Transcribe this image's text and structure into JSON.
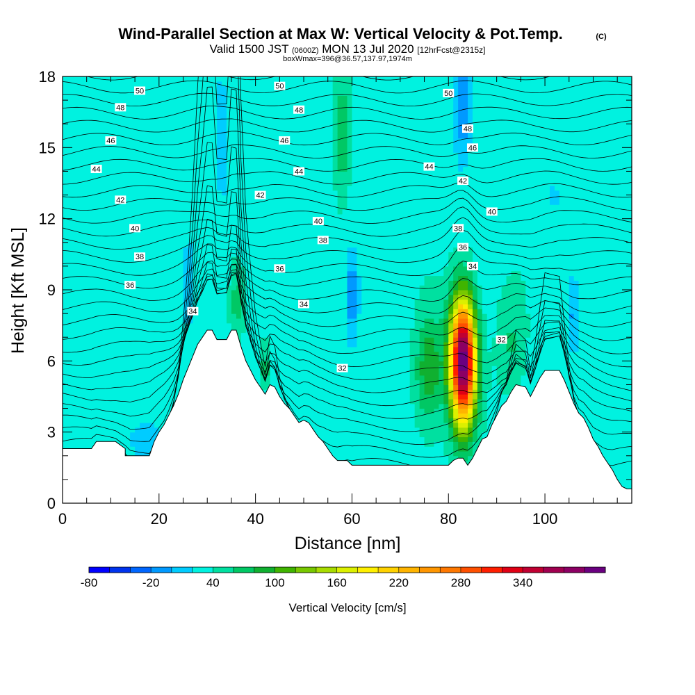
{
  "header": {
    "title": "Wind-Parallel Section at Max W: Vertical Velocity & Pot.Temp.",
    "copyright": "(C)",
    "valid_prefix": "Valid 1500 JST",
    "valid_utc": "(0600Z)",
    "valid_date": "MON 13 Jul 2020",
    "forecast": "[12hrFcst@2315z]",
    "box_info": "boxWmax=396@36.57,137.97,1974m"
  },
  "chart_data": {
    "type": "heatmap",
    "xlabel": "Distance [nm]",
    "ylabel": "Height [Kft MSL]",
    "xlim": [
      0,
      118
    ],
    "ylim": [
      0,
      18
    ],
    "x_ticks": [
      0,
      20,
      40,
      60,
      80,
      100
    ],
    "y_ticks": [
      0,
      3,
      6,
      9,
      12,
      15,
      18
    ],
    "terrain": [
      [
        0,
        2.3
      ],
      [
        6,
        2.3
      ],
      [
        7,
        2.6
      ],
      [
        11,
        2.6
      ],
      [
        13,
        2.3
      ],
      [
        13,
        2.0
      ],
      [
        18,
        2.0
      ],
      [
        19,
        2.6
      ],
      [
        20,
        3.0
      ],
      [
        21,
        3.3
      ],
      [
        22,
        3.7
      ],
      [
        23,
        4.1
      ],
      [
        24,
        4.6
      ],
      [
        25,
        5.2
      ],
      [
        26,
        5.7
      ],
      [
        27,
        6.2
      ],
      [
        28,
        6.7
      ],
      [
        29,
        7.0
      ],
      [
        30,
        7.3
      ],
      [
        31,
        7.3
      ],
      [
        32,
        6.9
      ],
      [
        34,
        6.9
      ],
      [
        35,
        7.3
      ],
      [
        36,
        7.3
      ],
      [
        37,
        6.6
      ],
      [
        38,
        6.0
      ],
      [
        39,
        5.6
      ],
      [
        40,
        5.2
      ],
      [
        41,
        4.9
      ],
      [
        42,
        4.6
      ],
      [
        43,
        5.0
      ],
      [
        44,
        4.9
      ],
      [
        45,
        4.5
      ],
      [
        46,
        4.2
      ],
      [
        47,
        4.0
      ],
      [
        48,
        3.7
      ],
      [
        49,
        3.4
      ],
      [
        50,
        3.5
      ],
      [
        51,
        3.4
      ],
      [
        52,
        3.1
      ],
      [
        53,
        2.8
      ],
      [
        54,
        2.6
      ],
      [
        55,
        2.3
      ],
      [
        56,
        2.0
      ],
      [
        57,
        1.8
      ],
      [
        59,
        1.8
      ],
      [
        60,
        1.6
      ],
      [
        80,
        1.6
      ],
      [
        81,
        1.8
      ],
      [
        82,
        1.9
      ],
      [
        83,
        1.9
      ],
      [
        84,
        1.6
      ],
      [
        85,
        1.9
      ],
      [
        86,
        2.3
      ],
      [
        87,
        2.7
      ],
      [
        88,
        2.8
      ],
      [
        89,
        3.3
      ],
      [
        90,
        3.7
      ],
      [
        91,
        4.1
      ],
      [
        92,
        4.3
      ],
      [
        93,
        4.7
      ],
      [
        94,
        5.0
      ],
      [
        96,
        4.9
      ],
      [
        97,
        4.5
      ],
      [
        98,
        4.9
      ],
      [
        99,
        5.3
      ],
      [
        100,
        5.6
      ],
      [
        103,
        5.6
      ],
      [
        104,
        5.2
      ],
      [
        105,
        4.7
      ],
      [
        106,
        4.2
      ],
      [
        107,
        3.8
      ],
      [
        108,
        3.6
      ],
      [
        109,
        3.2
      ],
      [
        110,
        2.7
      ],
      [
        111,
        2.4
      ],
      [
        112,
        2.0
      ],
      [
        113,
        1.7
      ],
      [
        114,
        1.4
      ],
      [
        115,
        1.0
      ],
      [
        116,
        0.7
      ],
      [
        117,
        0.6
      ],
      [
        118,
        0.6
      ]
    ],
    "updrafts": [
      {
        "x": 83,
        "z": 6.0,
        "sx": 2.6,
        "sz": 2.6,
        "w": 390
      },
      {
        "x": 76,
        "z": 5.6,
        "sx": 2.8,
        "sz": 2.2,
        "w": 70
      },
      {
        "x": 58,
        "z": 15.2,
        "sx": 1.8,
        "sz": 2.6,
        "w": 45
      },
      {
        "x": 36,
        "z": 8.5,
        "sx": 1.5,
        "sz": 1.6,
        "w": 35
      },
      {
        "x": 42,
        "z": 5.7,
        "sx": 1.2,
        "sz": 1.0,
        "w": 40
      },
      {
        "x": 93,
        "z": 6.5,
        "sx": 3.0,
        "sz": 2.2,
        "w": 30
      }
    ],
    "downdrafts": [
      {
        "x": 60,
        "z": 8.8,
        "sx": 1.4,
        "sz": 1.8,
        "w": -55
      },
      {
        "x": 83,
        "z": 16.5,
        "sx": 1.7,
        "sz": 2.5,
        "w": -45
      },
      {
        "x": 33,
        "z": 14.8,
        "sx": 1.5,
        "sz": 2.6,
        "w": -28
      },
      {
        "x": 26,
        "z": 9.2,
        "sx": 1.3,
        "sz": 1.8,
        "w": -35
      },
      {
        "x": 17,
        "z": 2.7,
        "sx": 3.2,
        "sz": 0.7,
        "w": -30
      },
      {
        "x": 106,
        "z": 7.8,
        "sx": 1.2,
        "sz": 1.5,
        "w": -35
      },
      {
        "x": 102,
        "z": 13.0,
        "sx": 0.9,
        "sz": 1.3,
        "w": -25
      }
    ],
    "isentrope_values": [
      32,
      34,
      36,
      38,
      40,
      42,
      44,
      46,
      48,
      50
    ],
    "contour_labels": [
      {
        "t": "50",
        "x": 16,
        "z": 17.4
      },
      {
        "t": "50",
        "x": 45,
        "z": 17.6
      },
      {
        "t": "50",
        "x": 80,
        "z": 17.3
      },
      {
        "t": "48",
        "x": 12,
        "z": 16.7
      },
      {
        "t": "48",
        "x": 49,
        "z": 16.6
      },
      {
        "t": "48",
        "x": 84,
        "z": 15.8
      },
      {
        "t": "46",
        "x": 10,
        "z": 15.3
      },
      {
        "t": "46",
        "x": 46,
        "z": 15.3
      },
      {
        "t": "46",
        "x": 85,
        "z": 15.0
      },
      {
        "t": "44",
        "x": 7,
        "z": 14.1
      },
      {
        "t": "44",
        "x": 49,
        "z": 14.0
      },
      {
        "t": "44",
        "x": 76,
        "z": 14.2
      },
      {
        "t": "42",
        "x": 12,
        "z": 12.8
      },
      {
        "t": "42",
        "x": 41,
        "z": 13.0
      },
      {
        "t": "42",
        "x": 83,
        "z": 13.6
      },
      {
        "t": "40",
        "x": 15,
        "z": 11.6
      },
      {
        "t": "40",
        "x": 53,
        "z": 11.9
      },
      {
        "t": "40",
        "x": 89,
        "z": 12.3
      },
      {
        "t": "38",
        "x": 16,
        "z": 10.4
      },
      {
        "t": "38",
        "x": 54,
        "z": 11.1
      },
      {
        "t": "38",
        "x": 82,
        "z": 11.6
      },
      {
        "t": "36",
        "x": 14,
        "z": 9.2
      },
      {
        "t": "36",
        "x": 45,
        "z": 9.9
      },
      {
        "t": "36",
        "x": 83,
        "z": 10.8
      },
      {
        "t": "34",
        "x": 27,
        "z": 8.1
      },
      {
        "t": "34",
        "x": 50,
        "z": 8.4
      },
      {
        "t": "34",
        "x": 85,
        "z": 10.0
      },
      {
        "t": "32",
        "x": 58,
        "z": 5.7
      },
      {
        "t": "32",
        "x": 91,
        "z": 6.9
      }
    ]
  },
  "colorbar": {
    "title": "Vertical Velocity [cm/s]",
    "tick_labels": [
      "-80",
      "-20",
      "40",
      "100",
      "160",
      "220",
      "280",
      "340"
    ],
    "levels": [
      -80,
      -60,
      -40,
      -20,
      0,
      20,
      40,
      60,
      80,
      100,
      120,
      140,
      160,
      180,
      200,
      220,
      240,
      260,
      280,
      300,
      320,
      340,
      360,
      380
    ],
    "colors": [
      "#0000ff",
      "#0033ee",
      "#0066ff",
      "#0099ff",
      "#00ccff",
      "#00f2e0",
      "#00e0a0",
      "#00c864",
      "#10b030",
      "#40b400",
      "#78c800",
      "#a8dc00",
      "#dcf000",
      "#fff000",
      "#ffd200",
      "#ffb400",
      "#ff9600",
      "#ff7800",
      "#ff5000",
      "#ff1e00",
      "#e00014",
      "#c00032",
      "#a00050",
      "#8c0064",
      "#6a0080"
    ]
  }
}
